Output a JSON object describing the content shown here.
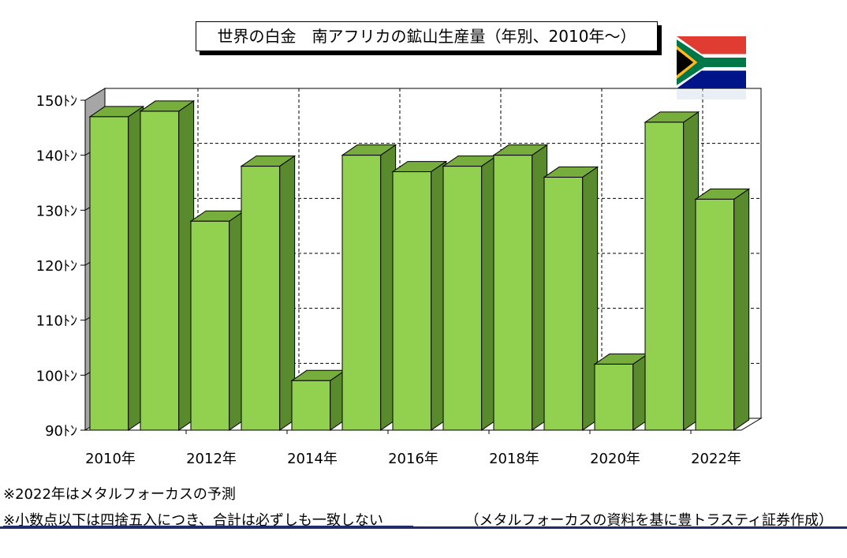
{
  "title": "世界の白金　南アフリカの鉱山生産量（年別、2010年～）",
  "notes": {
    "forecast": "※2022年はメタルフォーカスの予測",
    "rounding": "※小数点以下は四捨五入につき、合計は必ずしも一致しない"
  },
  "source": "（メタルフォーカスの資料を基に豊トラスティ証券作成）",
  "flag": {
    "name": "south-africa-flag-icon"
  },
  "colors": {
    "bar_front": "#92d050",
    "bar_side": "#5a8a2e",
    "bar_top": "#76ad3c",
    "wall": "#a6a6a6",
    "footer": "#1f2d6e"
  },
  "chart_data": {
    "type": "bar",
    "title": "世界の白金　南アフリカの鉱山生産量（年別、2010年～）",
    "x": [
      2010,
      2011,
      2012,
      2013,
      2014,
      2015,
      2016,
      2017,
      2018,
      2019,
      2020,
      2021,
      2022
    ],
    "categories": [
      "2010年",
      "",
      "2012年",
      "",
      "2014年",
      "",
      "2016年",
      "",
      "2018年",
      "",
      "2020年",
      "",
      "2022年"
    ],
    "values": [
      147,
      148,
      128,
      138,
      99,
      140,
      137,
      138,
      140,
      136,
      102,
      146,
      132
    ],
    "ylim": [
      90,
      150
    ],
    "yticks": [
      90,
      100,
      110,
      120,
      130,
      140,
      150
    ],
    "ytick_labels": [
      "90ﾄﾝ",
      "100ﾄﾝ",
      "110ﾄﾝ",
      "120ﾄﾝ",
      "130ﾄﾝ",
      "140ﾄﾝ",
      "150ﾄﾝ"
    ],
    "grid": true,
    "style": "3d"
  }
}
